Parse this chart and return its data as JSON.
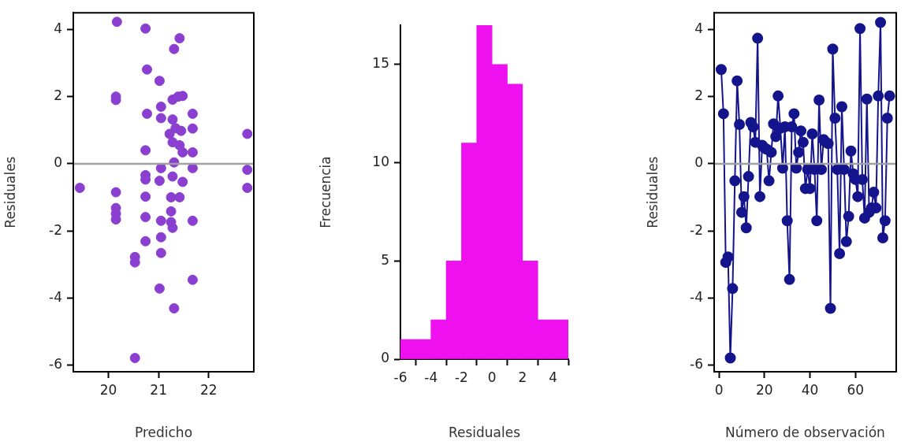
{
  "chart_data": [
    {
      "type": "scatter",
      "xlabel": "Predicho",
      "ylabel": "Residuales",
      "color": "#8a3fd1",
      "marker": "circle",
      "x": [
        20.17,
        20.74,
        21.42,
        21.31,
        20.77,
        21.02,
        20.15,
        20.15,
        20.77,
        21.05,
        21.05,
        21.28,
        21.39,
        21.48,
        21.68,
        21.68,
        21.28,
        21.34,
        21.22,
        21.45,
        21.28,
        21.42,
        21.48,
        21.68,
        20.74,
        22.77,
        22.77,
        22.77,
        19.43,
        21.05,
        21.31,
        21.28,
        20.74,
        20.74,
        21.02,
        21.48,
        21.68,
        20.15,
        20.74,
        21.25,
        21.42,
        20.15,
        20.15,
        20.15,
        21.25,
        20.74,
        21.05,
        21.25,
        21.28,
        21.68,
        21.05,
        20.74,
        21.05,
        20.53,
        20.53,
        21.68,
        21.02,
        21.31,
        20.53
      ],
      "values": [
        4.23,
        4.03,
        3.74,
        3.42,
        2.81,
        2.47,
        2.0,
        1.9,
        1.49,
        1.7,
        1.36,
        1.91,
        2.0,
        2.02,
        1.49,
        1.05,
        1.32,
        1.06,
        0.89,
        0.98,
        0.64,
        0.55,
        0.34,
        0.34,
        0.4,
        0.89,
        -0.18,
        -0.72,
        -0.72,
        -0.13,
        0.04,
        -0.38,
        -0.34,
        -0.47,
        -0.51,
        -0.54,
        -0.13,
        -0.85,
        -0.98,
        -1.0,
        -1.0,
        -1.32,
        -1.49,
        -1.66,
        -1.42,
        -1.59,
        -1.7,
        -1.74,
        -1.91,
        -1.7,
        -2.19,
        -2.31,
        -2.66,
        -2.78,
        -2.94,
        -3.46,
        -3.72,
        -4.31,
        -5.79
      ],
      "xlim": [
        19.3,
        22.9
      ],
      "xticks": [
        20,
        21,
        22
      ],
      "ylim": [
        -6.2,
        4.5
      ],
      "yticks": [
        -6,
        -4,
        -2,
        0,
        2,
        4
      ],
      "ref_lines": [
        {
          "axis": "y",
          "value": 0,
          "color": "#a0a0a0"
        }
      ]
    },
    {
      "type": "histogram",
      "xlabel": "Residuales",
      "ylabel": "Frecuencia",
      "color": "#ee10ee",
      "bins": [
        -6,
        -5,
        -4,
        -3,
        -2,
        -1,
        0,
        1,
        2,
        3,
        4,
        5
      ],
      "values": [
        1,
        1,
        2,
        5,
        11,
        17,
        15,
        14,
        5,
        2,
        2
      ],
      "xlim": [
        -6,
        5
      ],
      "xticks": [
        -6,
        -4,
        -2,
        0,
        2,
        4
      ],
      "ylim": [
        0,
        17
      ],
      "yticks": [
        0,
        5,
        10,
        15
      ]
    },
    {
      "type": "line",
      "xlabel": "Número de observación",
      "ylabel": "Residuales",
      "color": "#14148c",
      "marker": "circle",
      "x": [
        1,
        2,
        3,
        4,
        5,
        6,
        7,
        8,
        9,
        10,
        11,
        12,
        13,
        14,
        15,
        16,
        17,
        18,
        19,
        20,
        21,
        22,
        23,
        24,
        25,
        26,
        27,
        28,
        29,
        30,
        31,
        32,
        33,
        34,
        35,
        36,
        37,
        38,
        39,
        40,
        41,
        42,
        43,
        44,
        45,
        46,
        47,
        48,
        49,
        50,
        51,
        52,
        53,
        54,
        55,
        56,
        57,
        58,
        59,
        60,
        61,
        62,
        63,
        64,
        65,
        66,
        67,
        68,
        69,
        70,
        71,
        72,
        73,
        74,
        75
      ],
      "values": [
        2.81,
        1.49,
        -2.94,
        -2.78,
        -5.79,
        -3.72,
        -0.51,
        2.47,
        1.17,
        -1.45,
        -0.98,
        -1.91,
        -0.38,
        1.23,
        1.1,
        0.64,
        3.74,
        -0.98,
        0.55,
        0.47,
        0.43,
        -0.51,
        0.34,
        1.19,
        0.81,
        2.02,
        1.06,
        -0.13,
        1.1,
        -1.7,
        -3.45,
        1.1,
        1.49,
        -0.13,
        0.34,
        0.98,
        0.64,
        -0.74,
        -0.17,
        -0.74,
        0.89,
        -0.17,
        -1.7,
        1.9,
        -0.17,
        0.72,
        0.64,
        0.6,
        -4.31,
        3.42,
        1.36,
        -0.17,
        -2.68,
        1.7,
        -0.17,
        -2.32,
        -1.57,
        0.38,
        -0.3,
        -0.47,
        -0.98,
        4.03,
        -0.47,
        -1.62,
        1.93,
        -1.45,
        -1.32,
        -0.85,
        -1.32,
        2.02,
        4.21,
        -2.21,
        -1.7,
        1.36,
        2.02
      ],
      "xlim": [
        -2.1,
        77.9
      ],
      "xticks": [
        0,
        20,
        40,
        60
      ],
      "ylim": [
        -6.2,
        4.5
      ],
      "yticks": [
        -6,
        -4,
        -2,
        0,
        2,
        4
      ],
      "ref_lines": [
        {
          "axis": "y",
          "value": 0,
          "color": "#a0a0a0"
        }
      ]
    }
  ]
}
